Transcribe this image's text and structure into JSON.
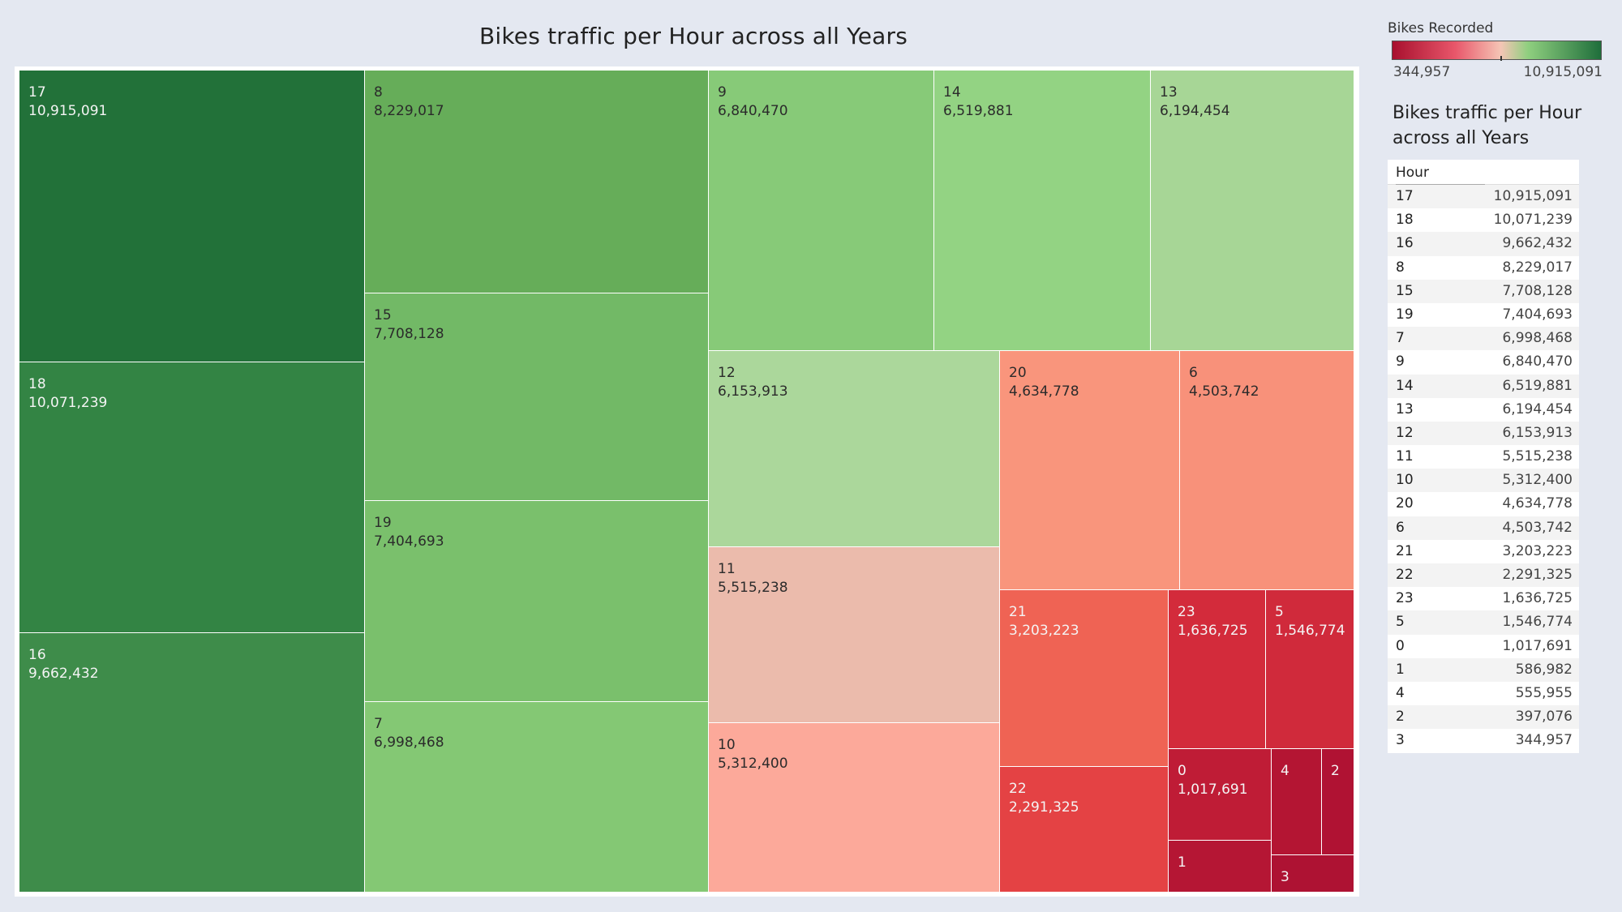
{
  "chart_data": {
    "type": "treemap",
    "title": "Bikes traffic per Hour across all Years",
    "measure": "Bikes Recorded",
    "color_range": {
      "min": 344957,
      "max": 10915091,
      "min_label": "344,957",
      "max_label": "10,915,091"
    },
    "colors": {
      "low": "#a8102e",
      "mid": "#f5c5b5",
      "high": "#1f6e3b"
    },
    "data": [
      {
        "hour": "17",
        "label": "10,915,091",
        "value": 10915091,
        "color": "#227139"
      },
      {
        "hour": "18",
        "label": "10,071,239",
        "value": 10071239,
        "color": "#338444"
      },
      {
        "hour": "16",
        "label": "9,662,432",
        "value": 9662432,
        "color": "#3e8c4a"
      },
      {
        "hour": "8",
        "label": "8,229,017",
        "value": 8229017,
        "color": "#66ad59"
      },
      {
        "hour": "15",
        "label": "7,708,128",
        "value": 7708128,
        "color": "#72b966"
      },
      {
        "hour": "19",
        "label": "7,404,693",
        "value": 7404693,
        "color": "#7ac06c"
      },
      {
        "hour": "7",
        "label": "6,998,468",
        "value": 6998468,
        "color": "#84c874"
      },
      {
        "hour": "9",
        "label": "6,840,470",
        "value": 6840470,
        "color": "#87ca78"
      },
      {
        "hour": "14",
        "label": "6,519,881",
        "value": 6519881,
        "color": "#93d383"
      },
      {
        "hour": "13",
        "label": "6,194,454",
        "value": 6194454,
        "color": "#a7d696"
      },
      {
        "hour": "12",
        "label": "6,153,913",
        "value": 6153913,
        "color": "#abd79b"
      },
      {
        "hour": "11",
        "label": "5,515,238",
        "value": 5515238,
        "color": "#ebbbac"
      },
      {
        "hour": "10",
        "label": "5,312,400",
        "value": 5312400,
        "color": "#fca99a"
      },
      {
        "hour": "20",
        "label": "4,634,778",
        "value": 4634778,
        "color": "#f9957c"
      },
      {
        "hour": "6",
        "label": "4,503,742",
        "value": 4503742,
        "color": "#f8917a"
      },
      {
        "hour": "21",
        "label": "3,203,223",
        "value": 3203223,
        "color": "#ef6354"
      },
      {
        "hour": "22",
        "label": "2,291,325",
        "value": 2291325,
        "color": "#e44244"
      },
      {
        "hour": "23",
        "label": "1,636,725",
        "value": 1636725,
        "color": "#d32b3b"
      },
      {
        "hour": "5",
        "label": "1,546,774",
        "value": 1546774,
        "color": "#d02a3b"
      },
      {
        "hour": "0",
        "label": "1,017,691",
        "value": 1017691,
        "color": "#bf1c36"
      },
      {
        "hour": "1",
        "label": "",
        "value": 586982,
        "color": "#b51634"
      },
      {
        "hour": "4",
        "label": "",
        "value": 555955,
        "color": "#b41533"
      },
      {
        "hour": "2",
        "label": "",
        "value": 397076,
        "color": "#b01233"
      },
      {
        "hour": "3",
        "label": "",
        "value": 344957,
        "color": "#ae1233"
      }
    ]
  },
  "legend": {
    "title": "Bikes Recorded",
    "min_label": "344,957",
    "max_label": "10,915,091"
  },
  "table": {
    "title": "Bikes traffic per Hour across all Years",
    "column_header": "Hour",
    "rows": [
      {
        "hour": "17",
        "value": "10,915,091"
      },
      {
        "hour": "18",
        "value": "10,071,239"
      },
      {
        "hour": "16",
        "value": "9,662,432"
      },
      {
        "hour": "8",
        "value": "8,229,017"
      },
      {
        "hour": "15",
        "value": "7,708,128"
      },
      {
        "hour": "19",
        "value": "7,404,693"
      },
      {
        "hour": "7",
        "value": "6,998,468"
      },
      {
        "hour": "9",
        "value": "6,840,470"
      },
      {
        "hour": "14",
        "value": "6,519,881"
      },
      {
        "hour": "13",
        "value": "6,194,454"
      },
      {
        "hour": "12",
        "value": "6,153,913"
      },
      {
        "hour": "11",
        "value": "5,515,238"
      },
      {
        "hour": "10",
        "value": "5,312,400"
      },
      {
        "hour": "20",
        "value": "4,634,778"
      },
      {
        "hour": "6",
        "value": "4,503,742"
      },
      {
        "hour": "21",
        "value": "3,203,223"
      },
      {
        "hour": "22",
        "value": "2,291,325"
      },
      {
        "hour": "23",
        "value": "1,636,725"
      },
      {
        "hour": "5",
        "value": "1,546,774"
      },
      {
        "hour": "0",
        "value": "1,017,691"
      },
      {
        "hour": "1",
        "value": "586,982"
      },
      {
        "hour": "4",
        "value": "555,955"
      },
      {
        "hour": "2",
        "value": "397,076"
      },
      {
        "hour": "3",
        "value": "344,957"
      }
    ]
  }
}
